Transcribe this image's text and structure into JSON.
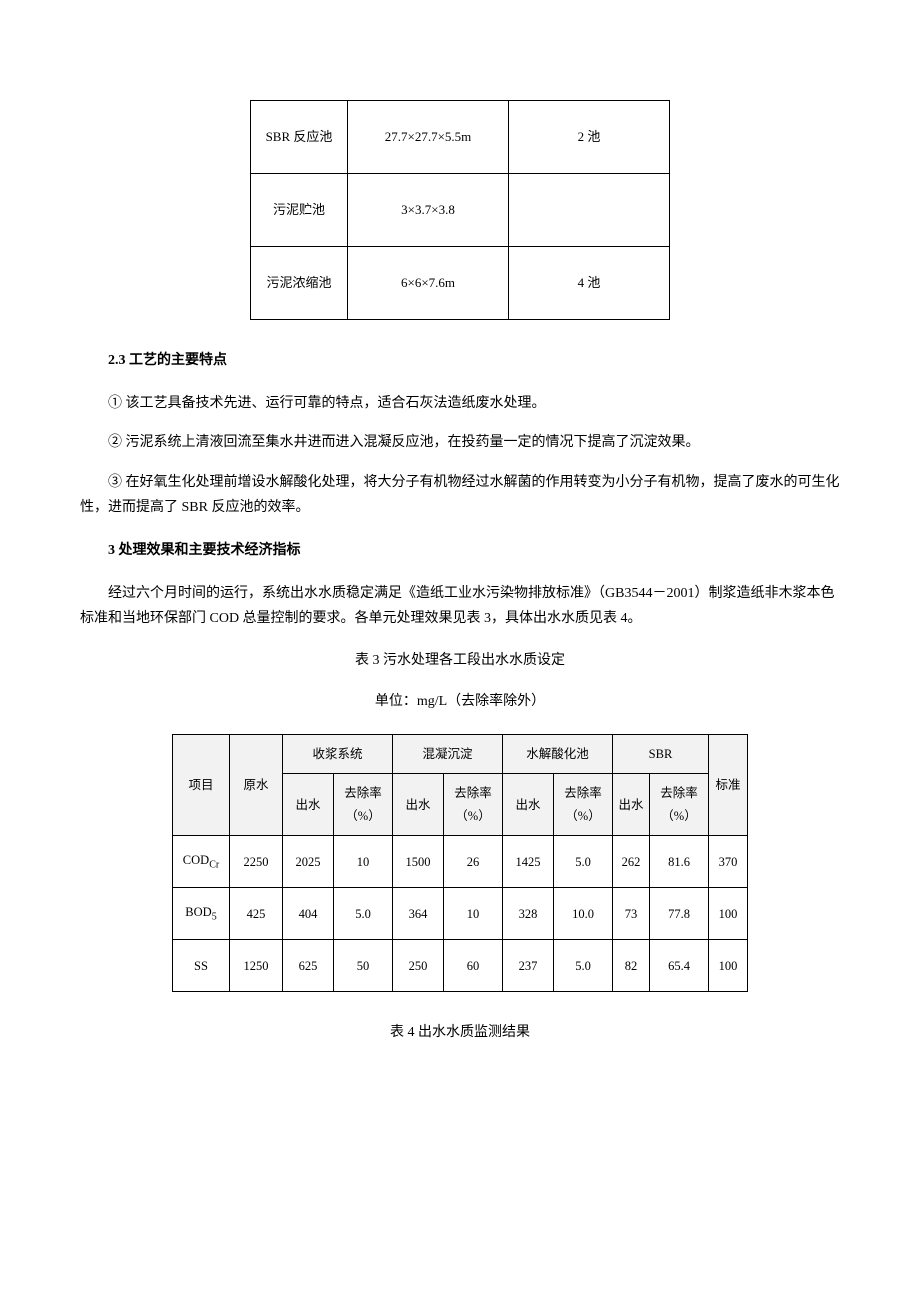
{
  "table1": {
    "rows": [
      {
        "name": "SBR 反应池",
        "spec": "27.7×27.7×5.5m",
        "qty": "2 池"
      },
      {
        "name": "污泥贮池",
        "spec": "3×3.7×3.8",
        "qty": ""
      },
      {
        "name": "污泥浓缩池",
        "spec": "6×6×7.6m",
        "qty": "4 池"
      }
    ]
  },
  "sec23_head": "2.3 工艺的主要特点",
  "p1": "① 该工艺具备技术先进、运行可靠的特点，适合石灰法造纸废水处理。",
  "p2": "② 污泥系统上清液回流至集水井进而进入混凝反应池，在投药量一定的情况下提高了沉淀效果。",
  "p3": "③ 在好氧生化处理前增设水解酸化处理，将大分子有机物经过水解菌的作用转变为小分子有机物，提高了废水的可生化性，进而提高了 SBR 反应池的效率。",
  "sec3_head": "3 处理效果和主要技术经济指标",
  "p4": "经过六个月时间的运行，系统出水水质稳定满足《造纸工业水污染物排放标准》（GB3544－2001）制浆造纸非木浆本色标准和当地环保部门 COD 总量控制的要求。各单元处理效果见表 3，具体出水水质见表 4。",
  "t3_title": "表 3 污水处理各工段出水水质设定",
  "t3_unit": "单位：mg/L（去除率除外）",
  "t3_head": {
    "col_project": "项目",
    "col_raw": "原水",
    "group_shoujiang": "收浆系统",
    "group_hunning": "混凝沉淀",
    "group_shuijie": "水解酸化池",
    "group_sbr": "SBR",
    "col_std": "标准",
    "sub_out": "出水",
    "sub_rate": "去除率（%）"
  },
  "t3_rows": [
    {
      "label_html": "COD<sub>Cr</sub>",
      "raw": "2250",
      "sj_out": "2025",
      "sj_rate": "10",
      "hn_out": "1500",
      "hn_rate": "26",
      "su_out": "1425",
      "su_rate": "5.0",
      "sbr_out": "262",
      "sbr_rate": "81.6",
      "std": "370"
    },
    {
      "label_html": "BOD<sub>5</sub>",
      "raw": "425",
      "sj_out": "404",
      "sj_rate": "5.0",
      "hn_out": "364",
      "hn_rate": "10",
      "su_out": "328",
      "su_rate": "10.0",
      "sbr_out": "73",
      "sbr_rate": "77.8",
      "std": "100"
    },
    {
      "label_html": "SS",
      "raw": "1250",
      "sj_out": "625",
      "sj_rate": "50",
      "hn_out": "250",
      "hn_rate": "60",
      "su_out": "237",
      "su_rate": "5.0",
      "sbr_out": "82",
      "sbr_rate": "65.4",
      "std": "100"
    }
  ],
  "t4_title": "表 4 出水水质监测结果"
}
